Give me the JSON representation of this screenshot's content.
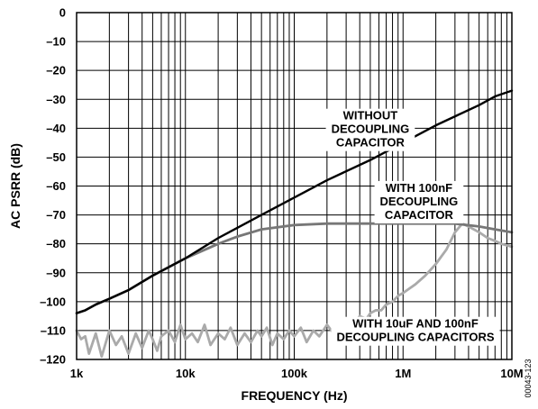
{
  "chart_data": {
    "type": "line",
    "xscale": "log",
    "xlim": [
      1000,
      10000000
    ],
    "ylim": [
      -120,
      0
    ],
    "grid": true,
    "xlabel": "FREQUENCY (Hz)",
    "ylabel": "AC PSRR (dB)",
    "x_tick_labels": [
      "1k",
      "10k",
      "100k",
      "1M",
      "10M"
    ],
    "x_tick_values": [
      1000,
      10000,
      100000,
      1000000,
      10000000
    ],
    "y_tick_values": [
      0,
      -10,
      -20,
      -30,
      -40,
      -50,
      -60,
      -70,
      -80,
      -90,
      -100,
      -110,
      -120
    ],
    "y_tick_labels": [
      "0",
      "–10",
      "–20",
      "–30",
      "–40",
      "–50",
      "–60",
      "–70",
      "–80",
      "–90",
      "–100",
      "–110",
      "–120"
    ],
    "series": [
      {
        "name": "WITHOUT DECOUPLING CAPACITOR",
        "color": "#000000",
        "x": [
          1000,
          1200,
          1500,
          2000,
          3000,
          5000,
          10000,
          20000,
          50000,
          100000,
          200000,
          500000,
          1000000,
          2000000,
          5000000,
          7000000,
          10000000
        ],
        "y": [
          -104,
          -103,
          -101,
          -99,
          -96,
          -91,
          -85,
          -78,
          -70,
          -64,
          -58,
          -51,
          -45,
          -39,
          -32,
          -29,
          -27
        ]
      },
      {
        "name": "WITH 100nF DECOUPLING CAPACITOR",
        "color": "#777777",
        "x": [
          1000,
          1200,
          1500,
          2000,
          3000,
          5000,
          10000,
          20000,
          30000,
          50000,
          100000,
          200000,
          500000,
          1000000,
          2000000,
          3000000,
          5000000,
          7000000,
          10000000
        ],
        "y": [
          -104,
          -103,
          -101,
          -99,
          -96,
          -91,
          -85,
          -80,
          -77.5,
          -75,
          -73.5,
          -73,
          -73,
          -73,
          -73,
          -73,
          -74,
          -75,
          -76
        ]
      },
      {
        "name": "WITH 10uF AND 100nF DECOUPLING CAPACITORS",
        "color": "#aaaaaa",
        "x": [
          1000,
          1100,
          1200,
          1300,
          1500,
          1700,
          2000,
          2300,
          2600,
          3000,
          3500,
          4000,
          4600,
          5000,
          5500,
          6000,
          7000,
          8000,
          9000,
          10000,
          11500,
          13000,
          15000,
          17000,
          20000,
          23000,
          26000,
          30000,
          35000,
          40000,
          46000,
          50000,
          56000,
          63000,
          70000,
          80000,
          90000,
          100000,
          115000,
          130000,
          150000,
          170000,
          200000,
          230000,
          260000,
          300000,
          350000,
          400000,
          460000,
          500000,
          560000,
          630000,
          700000,
          800000,
          900000,
          1000000,
          1300000,
          1600000,
          2000000,
          2500000,
          3000000,
          3500000,
          4000000,
          5000000,
          6000000,
          7000000,
          8000000,
          10000000
        ],
        "y": [
          -110,
          -113,
          -112,
          -118,
          -111,
          -119,
          -110,
          -115,
          -112,
          -118,
          -111,
          -116,
          -110,
          -113,
          -117,
          -112,
          -110,
          -114,
          -108,
          -113,
          -111,
          -114,
          -108,
          -115,
          -111,
          -113,
          -109,
          -115,
          -111,
          -114,
          -110,
          -112,
          -109,
          -115,
          -111,
          -113,
          -110,
          -112,
          -109,
          -114,
          -110,
          -112,
          -108,
          -111,
          -109,
          -107,
          -108,
          -105,
          -106,
          -104,
          -103,
          -103,
          -101,
          -100,
          -98,
          -97,
          -94,
          -91,
          -87,
          -82,
          -76,
          -73,
          -74,
          -76,
          -78,
          -79,
          -80,
          -81
        ]
      }
    ],
    "annotations": [
      {
        "lines": [
          "WITHOUT",
          "DECOUPLING",
          "CAPACITOR"
        ],
        "x": 500000,
        "y": -37
      },
      {
        "lines": [
          "WITH 100nF",
          "DECOUPLING",
          "CAPACITOR"
        ],
        "x": 1400000,
        "y": -62
      },
      {
        "lines": [
          "WITH 10uF AND 100nF",
          "DECOUPLING CAPACITORS"
        ],
        "x": 1300000,
        "y": -109
      }
    ],
    "figure_id": "00043-123"
  }
}
